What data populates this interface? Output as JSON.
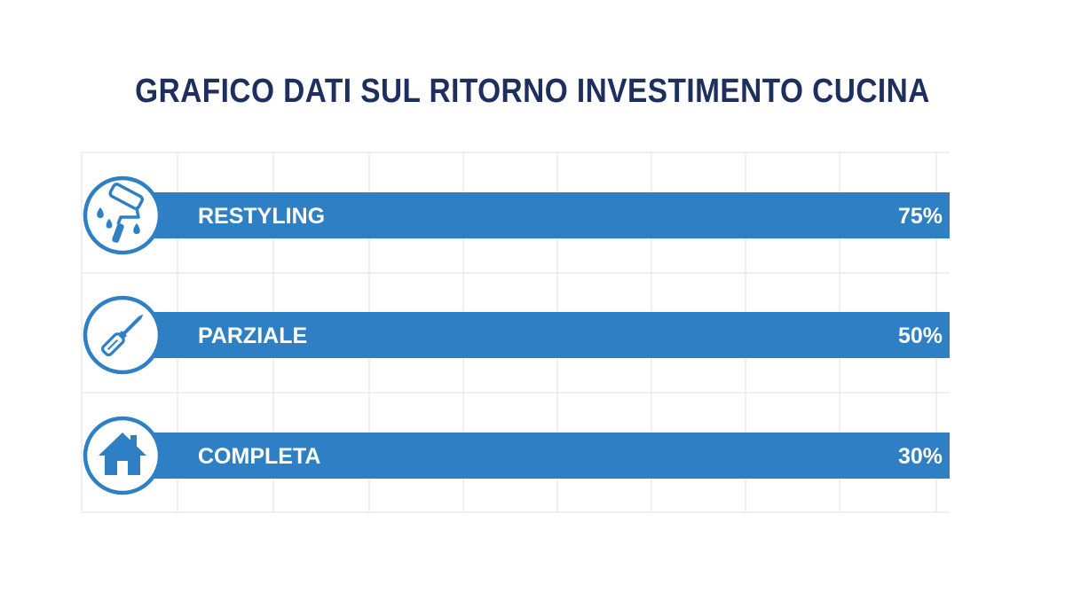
{
  "colors": {
    "title": "#1c2f5e",
    "bar": "#2e7fc4",
    "icon": "#2e7fc4",
    "grid": "#e3e6ea",
    "text_on_bar": "#ffffff"
  },
  "chart_data": {
    "type": "bar",
    "orientation": "horizontal",
    "title": "GRAFICO DATI SUL RITORNO INVESTIMENTO CUCINA",
    "categories": [
      "RESTYLING",
      "PARZIALE",
      "COMPLETA"
    ],
    "values": [
      75,
      50,
      30
    ],
    "value_labels": [
      "75%",
      "50%",
      "30%"
    ],
    "icons": [
      "paint-roller-icon",
      "screwdriver-icon",
      "house-icon"
    ],
    "grid": true,
    "legend": "none"
  }
}
